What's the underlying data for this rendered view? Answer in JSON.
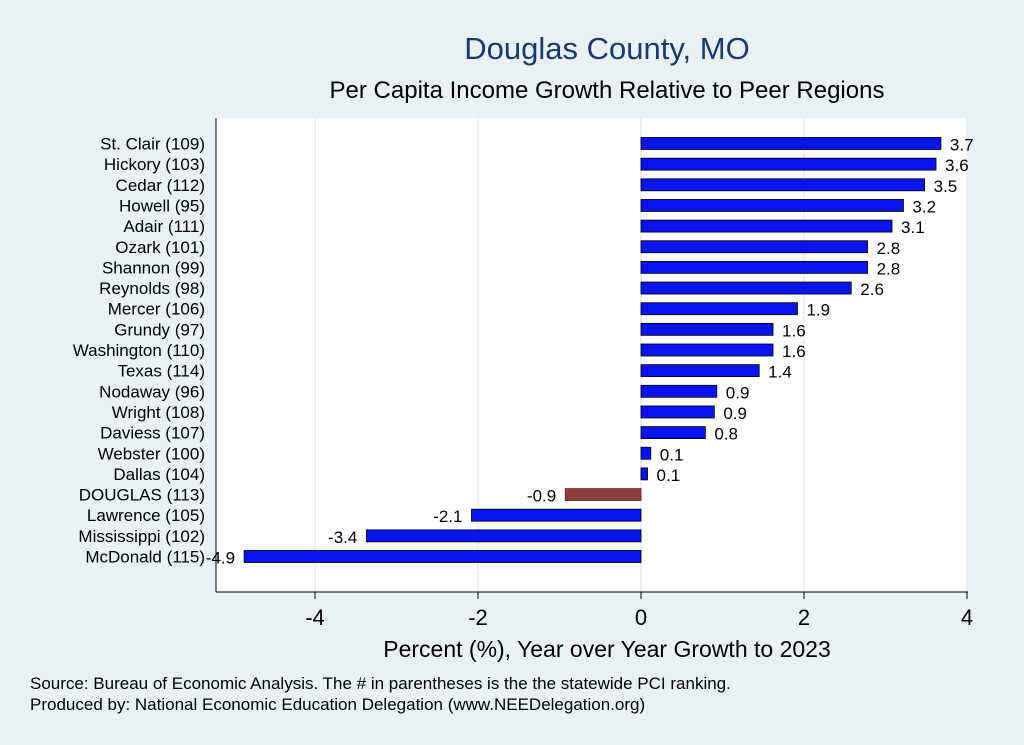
{
  "chart_data": {
    "type": "bar",
    "orientation": "horizontal",
    "title": "Douglas County, MO",
    "subtitle": "Per Capita Income Growth Relative to Peer Regions",
    "xlabel": "Percent (%), Year over Year Growth to 2023",
    "ylabel": "",
    "xlim": [
      -5,
      4
    ],
    "xticks": [
      -4,
      -2,
      0,
      2,
      4
    ],
    "grid": true,
    "categories": [
      "St. Clair (109)",
      "Hickory (103)",
      "Cedar (112)",
      "Howell (95)",
      "Adair (111)",
      "Ozark (101)",
      "Shannon (99)",
      "Reynolds (98)",
      "Mercer (106)",
      "Grundy (97)",
      "Washington (110)",
      "Texas (114)",
      "Nodaway (96)",
      "Wright (108)",
      "Daviess (107)",
      "Webster (100)",
      "Dallas (104)",
      "DOUGLAS (113)",
      "Lawrence (105)",
      "Mississippi (102)",
      "McDonald (115)"
    ],
    "values": [
      3.68,
      3.62,
      3.48,
      3.22,
      3.08,
      2.78,
      2.78,
      2.58,
      1.92,
      1.62,
      1.62,
      1.45,
      0.93,
      0.9,
      0.79,
      0.12,
      0.08,
      -0.93,
      -2.08,
      -3.37,
      -4.87
    ],
    "value_labels": [
      "3.7",
      "3.6",
      "3.5",
      "3.2",
      "3.1",
      "2.8",
      "2.8",
      "2.6",
      "1.9",
      "1.6",
      "1.6",
      "1.4",
      "0.9",
      "0.9",
      "0.8",
      "0.1",
      "0.1",
      "-0.9",
      "-2.1",
      "-3.4",
      "-4.9"
    ],
    "highlight": "DOUGLAS (113)",
    "colors": {
      "bar": "#0a14f0",
      "highlight": "#8c3d3d",
      "grid": "#eaf1f4",
      "plot_bg": "#ffffff",
      "page_bg": "#eaf1f4",
      "title": "#1a3a6e",
      "text": "#000000"
    }
  },
  "footer": {
    "source": "Source: Bureau of Economic Analysis. The # in parentheses is the the statewide PCI ranking.",
    "produced": "Produced by: National Economic Education Delegation (www.NEEDelegation.org)"
  }
}
